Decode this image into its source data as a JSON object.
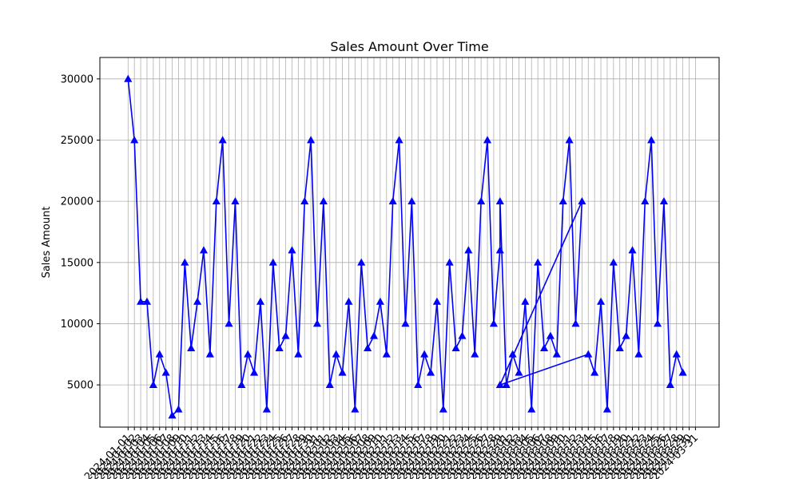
{
  "chart_data": {
    "type": "line",
    "title": "Sales Amount Over Time",
    "xlabel": "",
    "ylabel": "Sales Amount",
    "ylim": [
      1550,
      31750
    ],
    "yticks": [
      5000,
      10000,
      15000,
      20000,
      25000,
      30000
    ],
    "grid": true,
    "series_color": "#0000ff",
    "marker": "triangle-up",
    "x": [
      "2024-01-01",
      "2024-01-02",
      "2024-01-03",
      "2024-01-04",
      "2024-01-05",
      "2024-01-06",
      "2024-01-07",
      "2024-01-08",
      "2024-01-09",
      "2024-01-10",
      "2024-01-11",
      "2024-01-12",
      "2024-01-13",
      "2024-01-14",
      "2024-01-15",
      "2024-01-16",
      "2024-01-17",
      "2024-01-18",
      "2024-01-19",
      "2024-01-20",
      "2024-01-21",
      "2024-01-22",
      "2024-01-23",
      "2024-01-24",
      "2024-01-25",
      "2024-01-26",
      "2024-01-27",
      "2024-01-28",
      "2024-01-29",
      "2024-01-30",
      "2024-01-31",
      "2024-02-01",
      "2024-02-02",
      "2024-02-03",
      "2024-02-04",
      "2024-02-05",
      "2024-02-06",
      "2024-02-07",
      "2024-02-08",
      "2024-02-09",
      "2024-02-10",
      "2024-02-11",
      "2024-02-12",
      "2024-02-13",
      "2024-02-14",
      "2024-02-15",
      "2024-02-16",
      "2024-02-17",
      "2024-02-18",
      "2024-02-19",
      "2024-02-20",
      "2024-02-21",
      "2024-02-22",
      "2024-02-23",
      "2024-02-24",
      "2024-02-25",
      "2024-02-26",
      "2024-02-27",
      "2024-02-28",
      "2024-02-29",
      "2024-03-01",
      "2024-03-02",
      "2024-03-03",
      "2024-03-04",
      "2024-03-05",
      "2024-03-06",
      "2024-03-07",
      "2024-03-08",
      "2024-03-09",
      "2024-03-10",
      "2024-03-11",
      "2024-03-12",
      "2024-03-13",
      "2024-03-14",
      "2024-03-15",
      "2024-03-16",
      "2024-03-17",
      "2024-03-18",
      "2024-03-19",
      "2024-03-20",
      "2024-03-21",
      "2024-03-22",
      "2024-03-23",
      "2024-03-24",
      "2024-03-25",
      "2024-03-26",
      "2024-03-27",
      "2024-03-28",
      "2024-03-29",
      "2024-03-30",
      "2024-03-31"
    ],
    "series": [
      {
        "values": [
          30000,
          25000,
          11800,
          11800,
          5000,
          7500,
          6000,
          2500,
          3000,
          15000,
          8000,
          11800,
          16000,
          7500,
          20000,
          25000,
          10000,
          20000,
          5000,
          7500,
          6000,
          11800,
          3000,
          15000,
          8000,
          9000,
          16000,
          7500,
          20000,
          25000,
          10000,
          20000,
          5000,
          7500,
          6000,
          11800,
          3000,
          15000,
          8000,
          9000,
          11800,
          7500,
          20000,
          25000,
          10000,
          20000,
          5000,
          7500,
          6000,
          11800,
          3000,
          15000,
          8000,
          9000,
          16000,
          7500,
          20000,
          25000,
          10000,
          16000,
          20000,
          5000,
          7500,
          6000,
          11800,
          3000,
          15000,
          8000,
          9000,
          7500,
          20000,
          25000,
          10000,
          20000,
          5000,
          7500,
          6000,
          11800,
          3000,
          15000,
          8000,
          9000,
          16000,
          7500,
          20000,
          25000,
          10000,
          20000,
          5000,
          7500,
          6000
        ],
        "x_slot": [
          0,
          1,
          2,
          3,
          4,
          5,
          6,
          7,
          8,
          9,
          10,
          11,
          12,
          13,
          14,
          15,
          16,
          17,
          18,
          19,
          20,
          21,
          22,
          23,
          24,
          25,
          26,
          27,
          28,
          29,
          30,
          31,
          32,
          33,
          34,
          35,
          36,
          37,
          38,
          39,
          40,
          41,
          42,
          43,
          44,
          45,
          46,
          47,
          48,
          49,
          50,
          51,
          52,
          53,
          54,
          55,
          56,
          57,
          58,
          59,
          59,
          60,
          61,
          62,
          63,
          64,
          65,
          66,
          67,
          68,
          69,
          70,
          71,
          72,
          59,
          73,
          74,
          75,
          76,
          77,
          78,
          79,
          80,
          81,
          82,
          83,
          84,
          85,
          86,
          87,
          88
        ]
      }
    ]
  }
}
